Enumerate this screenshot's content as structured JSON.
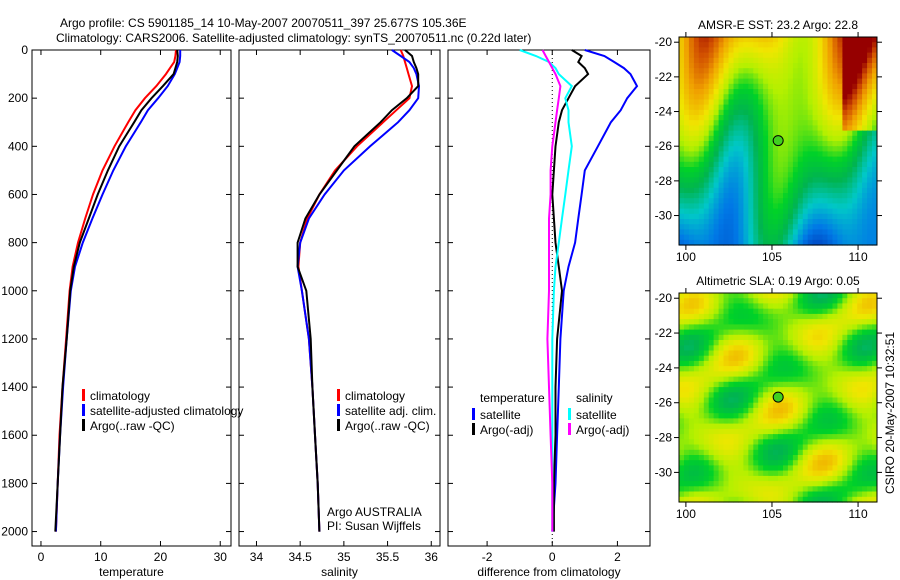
{
  "title_line1": "Argo profile: CS 5901185_14 10-May-2007 20070511_397 25.677S 105.36E",
  "title_line2": "Climatology: CARS2006. Satellite-adjusted climatology: synTS_20070511.nc (0.22d later)",
  "side_label": "CSIRO 20-May-2007 10:32:51",
  "colors": {
    "climatology": "#ff0000",
    "satellite": "#0000ff",
    "argo": "#000000",
    "sal_satellite": "#00ffff",
    "sal_argo": "#ff00ff"
  },
  "chart_data": [
    {
      "type": "line",
      "xlabel": "temperature",
      "xlim": [
        -1.5,
        31.8
      ],
      "ylim": [
        0,
        2060
      ],
      "y_reversed": true,
      "xticks": [
        "0",
        "10",
        "20",
        "30"
      ],
      "yticks": [
        "0",
        "200",
        "400",
        "600",
        "800",
        "1000",
        "1200",
        "1400",
        "1600",
        "1800",
        "2000"
      ],
      "legend": [
        "climatology",
        "satellite-adjusted climatology",
        "Argo(..raw -QC)"
      ],
      "legend_position": "bottom-right",
      "depth": [
        0,
        25,
        50,
        75,
        100,
        150,
        200,
        250,
        300,
        400,
        500,
        600,
        700,
        800,
        900,
        1000,
        1200,
        1400,
        1600,
        1800,
        2000
      ],
      "series": [
        {
          "name": "climatology",
          "color": "#ff0000",
          "values": [
            22.6,
            22.5,
            22.3,
            21.6,
            20.9,
            19.3,
            17.4,
            15.8,
            14.6,
            12.3,
            10.3,
            8.7,
            7.4,
            6.2,
            5.3,
            4.8,
            4.2,
            3.6,
            3.1,
            2.8,
            2.5
          ]
        },
        {
          "name": "satellite-adjusted climatology",
          "color": "#0000ff",
          "values": [
            23.3,
            23.3,
            23.2,
            22.8,
            22.4,
            21.2,
            19.6,
            17.9,
            16.7,
            14.2,
            12.1,
            10.3,
            8.6,
            7.0,
            5.7,
            5.0,
            4.3,
            3.7,
            3.2,
            2.8,
            2.5
          ]
        },
        {
          "name": "Argo(..raw -QC)",
          "color": "#000000",
          "values": [
            22.8,
            22.9,
            22.8,
            22.5,
            22.2,
            20.4,
            18.5,
            16.8,
            15.6,
            13.1,
            11.2,
            9.5,
            8.0,
            6.5,
            5.5,
            4.9,
            4.3,
            3.6,
            3.2,
            2.8,
            2.4
          ]
        }
      ]
    },
    {
      "type": "line",
      "xlabel": "salinity",
      "xlim": [
        33.8,
        36.1
      ],
      "ylim": [
        0,
        2060
      ],
      "y_reversed": true,
      "xticks": [
        "34",
        "34.5",
        "35",
        "35.5",
        "36"
      ],
      "legend": [
        "climatology",
        "satellite adj. clim.",
        "Argo(..raw -QC)"
      ],
      "legend_position": "bottom-right",
      "annotation": [
        "Argo AUSTRALIA",
        "PI: Susan Wijffels"
      ],
      "depth": [
        0,
        25,
        50,
        75,
        100,
        150,
        200,
        250,
        300,
        400,
        500,
        600,
        700,
        800,
        900,
        1000,
        1200,
        1400,
        1600,
        1800,
        2000
      ],
      "series": [
        {
          "name": "climatology",
          "color": "#ff0000",
          "values": [
            35.65,
            35.68,
            35.7,
            35.72,
            35.74,
            35.78,
            35.75,
            35.6,
            35.45,
            35.15,
            34.9,
            34.72,
            34.58,
            34.5,
            34.48,
            34.52,
            34.6,
            34.64,
            34.67,
            34.7,
            34.72
          ]
        },
        {
          "name": "satellite adj. clim.",
          "color": "#0000ff",
          "values": [
            35.55,
            35.65,
            35.75,
            35.8,
            35.83,
            35.86,
            35.85,
            35.75,
            35.62,
            35.3,
            35.0,
            34.78,
            34.6,
            34.5,
            34.47,
            34.52,
            34.6,
            34.64,
            34.67,
            34.7,
            34.72
          ]
        },
        {
          "name": "Argo(..raw -QC)",
          "color": "#000000",
          "values": [
            35.7,
            35.78,
            35.8,
            35.83,
            35.85,
            35.85,
            35.72,
            35.55,
            35.42,
            35.12,
            34.92,
            34.72,
            34.56,
            34.47,
            34.47,
            34.57,
            34.62,
            34.64,
            34.67,
            34.7,
            34.72
          ]
        }
      ]
    },
    {
      "type": "line",
      "xlabel": "difference from climatology",
      "xlim": [
        -3.2,
        3.0
      ],
      "ylim": [
        0,
        2060
      ],
      "y_reversed": true,
      "xticks": [
        "-2",
        "0",
        "2"
      ],
      "legend": [
        "temperature",
        "satellite",
        "Argo(-adj)",
        "salinity",
        "satellite",
        "Argo(-adj)"
      ],
      "legend_position": "bottom",
      "depth": [
        0,
        25,
        50,
        75,
        100,
        150,
        200,
        250,
        300,
        400,
        500,
        600,
        700,
        800,
        900,
        1000,
        1200,
        1400,
        1600,
        1800,
        2000
      ],
      "series": [
        {
          "name": "temperature satellite",
          "color": "#0000ff",
          "values": [
            1.0,
            1.6,
            1.9,
            2.2,
            2.4,
            2.6,
            2.3,
            2.1,
            1.8,
            1.4,
            1.0,
            0.9,
            0.8,
            0.7,
            0.5,
            0.35,
            0.25,
            0.2,
            0.15,
            0.1,
            0.0
          ]
        },
        {
          "name": "temperature Argo(-adj)",
          "color": "#000000",
          "values": [
            0.6,
            0.9,
            0.8,
            1.0,
            1.1,
            0.7,
            0.5,
            0.3,
            0.2,
            0.1,
            0.05,
            0.0,
            0.05,
            0.1,
            0.2,
            0.3,
            0.15,
            0.1,
            0.1,
            0.05,
            0.05
          ]
        },
        {
          "name": "salinity satellite",
          "color": "#00ffff",
          "values": [
            -1.0,
            -0.5,
            -0.1,
            0.1,
            0.2,
            0.6,
            0.4,
            0.5,
            0.5,
            0.6,
            0.5,
            0.4,
            0.3,
            0.2,
            0.1,
            0.05,
            0.0,
            0.0,
            0.0,
            0.0,
            0.0
          ]
        },
        {
          "name": "salinity Argo(-adj)",
          "color": "#ff00ff",
          "values": [
            -0.3,
            -0.2,
            -0.1,
            0.0,
            0.1,
            0.25,
            0.2,
            0.15,
            0.1,
            0.0,
            -0.05,
            -0.05,
            -0.1,
            -0.1,
            -0.1,
            -0.1,
            -0.15,
            -0.1,
            -0.05,
            0.0,
            0.0
          ]
        }
      ]
    },
    {
      "type": "heatmap",
      "title": "AMSR-E SST: 23.2 Argo: 22.8",
      "xlim": [
        99.6,
        111.1
      ],
      "ylim": [
        -31.7,
        -19.7
      ],
      "xticks": [
        "100",
        "105",
        "110"
      ],
      "yticks": [
        "-20",
        "-22",
        "-24",
        "-26",
        "-28",
        "-30"
      ],
      "marker": {
        "lon": 105.36,
        "lat": -25.677
      }
    },
    {
      "type": "heatmap",
      "title": "Altimetric SLA: 0.19 Argo: 0.05",
      "xlim": [
        99.6,
        111.1
      ],
      "ylim": [
        -31.7,
        -19.7
      ],
      "xticks": [
        "100",
        "105",
        "110"
      ],
      "yticks": [
        "-20",
        "-22",
        "-24",
        "-26",
        "-28",
        "-30"
      ],
      "marker": {
        "lon": 105.36,
        "lat": -25.677
      }
    }
  ]
}
